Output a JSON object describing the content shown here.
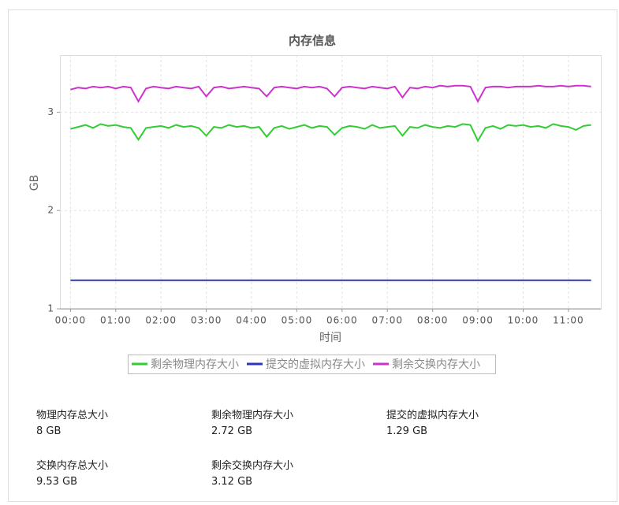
{
  "chart_data": {
    "type": "line",
    "title": "内存信息",
    "xlabel": "时间",
    "ylabel": "GB",
    "x": [
      0,
      10,
      20,
      30,
      40,
      50,
      60,
      70,
      80,
      90,
      100,
      110,
      120,
      130,
      140,
      150,
      160,
      170,
      180,
      190,
      200,
      210,
      220,
      230,
      240,
      250,
      260,
      270,
      280,
      290,
      300,
      310,
      320,
      330,
      340,
      350,
      360,
      370,
      380,
      390,
      400,
      410,
      420,
      430,
      440,
      450,
      460,
      470,
      480,
      490,
      500,
      510,
      520,
      530,
      540,
      550,
      560,
      570,
      580,
      590,
      600,
      610,
      620,
      630,
      640,
      650,
      660,
      670,
      680,
      690
    ],
    "xlim": [
      -14,
      703
    ],
    "xticks": [
      {
        "value": 0,
        "label": "00:00"
      },
      {
        "value": 60,
        "label": "01:00"
      },
      {
        "value": 120,
        "label": "02:00"
      },
      {
        "value": 180,
        "label": "03:00"
      },
      {
        "value": 240,
        "label": "04:00"
      },
      {
        "value": 300,
        "label": "05:00"
      },
      {
        "value": 360,
        "label": "06:00"
      },
      {
        "value": 420,
        "label": "07:00"
      },
      {
        "value": 480,
        "label": "08:00"
      },
      {
        "value": 540,
        "label": "09:00"
      },
      {
        "value": 600,
        "label": "10:00"
      },
      {
        "value": 660,
        "label": "11:00"
      }
    ],
    "ylim": [
      1,
      3.58
    ],
    "yticks": [
      1,
      2,
      3
    ],
    "grid": true,
    "series": [
      {
        "name": "剩余物理内存大小",
        "color": "#33cc33",
        "values": [
          2.83,
          2.85,
          2.87,
          2.84,
          2.88,
          2.86,
          2.87,
          2.85,
          2.84,
          2.72,
          2.84,
          2.85,
          2.86,
          2.84,
          2.87,
          2.85,
          2.86,
          2.84,
          2.76,
          2.85,
          2.84,
          2.87,
          2.85,
          2.86,
          2.84,
          2.85,
          2.75,
          2.84,
          2.86,
          2.83,
          2.85,
          2.87,
          2.84,
          2.86,
          2.85,
          2.77,
          2.84,
          2.86,
          2.85,
          2.83,
          2.87,
          2.84,
          2.85,
          2.86,
          2.76,
          2.85,
          2.84,
          2.87,
          2.85,
          2.84,
          2.86,
          2.85,
          2.88,
          2.87,
          2.71,
          2.84,
          2.86,
          2.83,
          2.87,
          2.86,
          2.87,
          2.85,
          2.86,
          2.84,
          2.88,
          2.86,
          2.85,
          2.82,
          2.86,
          2.87
        ]
      },
      {
        "name": "提交的虚拟内存大小",
        "color": "#2e35b8",
        "values": [
          1.29,
          1.29,
          1.29,
          1.29,
          1.29,
          1.29,
          1.29,
          1.29,
          1.29,
          1.29,
          1.29,
          1.29,
          1.29,
          1.29,
          1.29,
          1.29,
          1.29,
          1.29,
          1.29,
          1.29,
          1.29,
          1.29,
          1.29,
          1.29,
          1.29,
          1.29,
          1.29,
          1.29,
          1.29,
          1.29,
          1.29,
          1.29,
          1.29,
          1.29,
          1.29,
          1.29,
          1.29,
          1.29,
          1.29,
          1.29,
          1.29,
          1.29,
          1.29,
          1.29,
          1.29,
          1.29,
          1.29,
          1.29,
          1.29,
          1.29,
          1.29,
          1.29,
          1.29,
          1.29,
          1.29,
          1.29,
          1.29,
          1.29,
          1.29,
          1.29,
          1.29,
          1.29,
          1.29,
          1.29,
          1.29,
          1.29,
          1.29,
          1.29,
          1.29,
          1.29
        ]
      },
      {
        "name": "剩余交换内存大小",
        "color": "#cc33cc",
        "values": [
          3.23,
          3.25,
          3.24,
          3.26,
          3.25,
          3.26,
          3.24,
          3.26,
          3.25,
          3.11,
          3.24,
          3.26,
          3.25,
          3.24,
          3.26,
          3.25,
          3.24,
          3.26,
          3.16,
          3.25,
          3.26,
          3.24,
          3.25,
          3.26,
          3.25,
          3.24,
          3.16,
          3.25,
          3.26,
          3.25,
          3.24,
          3.26,
          3.25,
          3.26,
          3.24,
          3.16,
          3.25,
          3.26,
          3.25,
          3.24,
          3.26,
          3.25,
          3.24,
          3.26,
          3.15,
          3.25,
          3.24,
          3.26,
          3.25,
          3.27,
          3.26,
          3.27,
          3.27,
          3.26,
          3.11,
          3.25,
          3.26,
          3.26,
          3.25,
          3.26,
          3.26,
          3.26,
          3.27,
          3.26,
          3.26,
          3.27,
          3.26,
          3.27,
          3.27,
          3.26
        ]
      }
    ]
  },
  "stats": [
    {
      "label": "物理内存总大小",
      "value": "8 GB"
    },
    {
      "label": "剩余物理内存大小",
      "value": "2.72 GB"
    },
    {
      "label": "提交的虚拟内存大小",
      "value": "1.29 GB"
    },
    {
      "label": "交换内存总大小",
      "value": "9.53 GB"
    },
    {
      "label": "剩余交换内存大小",
      "value": "3.12 GB"
    }
  ]
}
